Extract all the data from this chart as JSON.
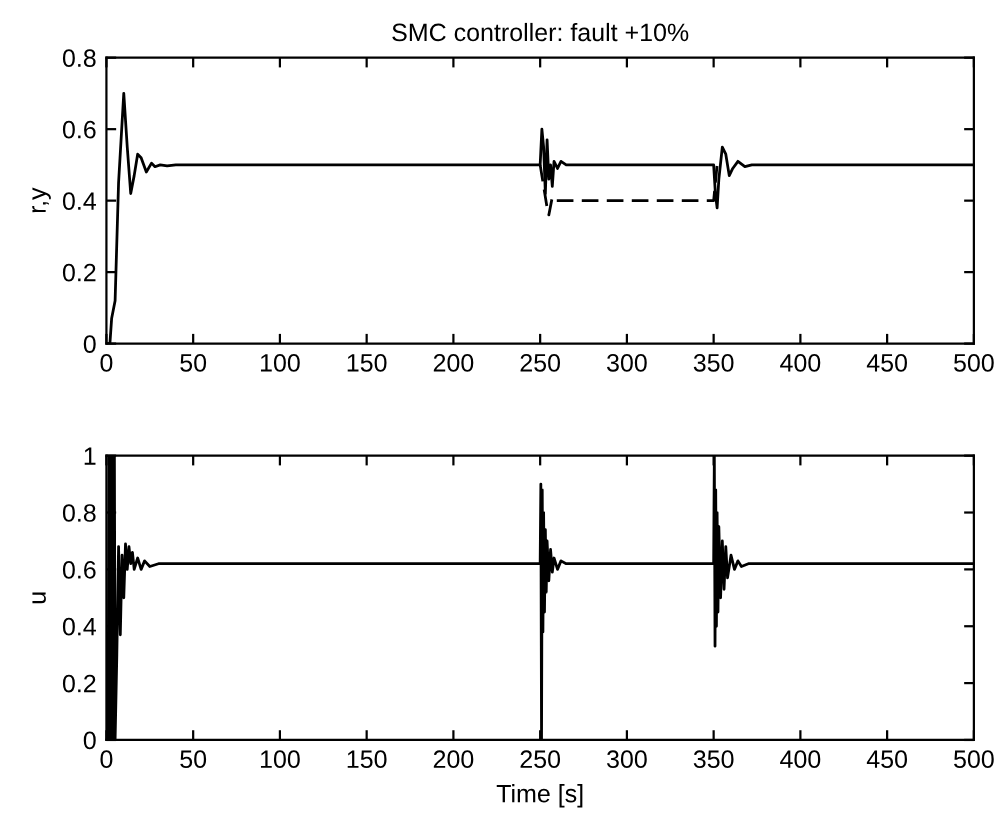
{
  "chart_data": [
    {
      "type": "line",
      "title": "SMC controller: fault +10%",
      "ylabel": "r,y",
      "xlim": [
        0,
        500
      ],
      "xticks": [
        0,
        50,
        100,
        150,
        200,
        250,
        300,
        350,
        400,
        450,
        500
      ],
      "ylim": [
        0,
        0.8
      ],
      "yticks": [
        0,
        0.2,
        0.4,
        0.6,
        0.8
      ],
      "grid": false,
      "legend": false,
      "series": [
        {
          "color": "#000000",
          "line_style": "solid",
          "x": [
            0,
            2,
            3,
            5,
            7,
            10,
            12,
            14,
            16,
            18,
            20,
            23,
            26,
            28,
            31,
            35,
            40,
            250,
            251,
            252,
            253,
            254,
            255,
            256,
            257,
            258,
            260,
            262,
            265,
            270,
            350,
            351,
            352,
            353,
            355,
            357,
            359,
            361,
            364,
            368,
            372,
            500
          ],
          "values": [
            0,
            0,
            0.07,
            0.12,
            0.45,
            0.7,
            0.55,
            0.42,
            0.47,
            0.53,
            0.52,
            0.48,
            0.505,
            0.495,
            0.5,
            0.497,
            0.5,
            0.5,
            0.6,
            0.55,
            0.42,
            0.57,
            0.46,
            0.5,
            0.44,
            0.51,
            0.49,
            0.51,
            0.5,
            0.5,
            0.5,
            0.42,
            0.38,
            0.46,
            0.55,
            0.53,
            0.47,
            0.49,
            0.51,
            0.495,
            0.5,
            0.5
          ]
        },
        {
          "color": "#000000",
          "line_style": "dashed",
          "x": [
            250,
            252,
            254,
            255,
            257,
            259,
            262,
            350,
            351,
            352
          ],
          "values": [
            0.5,
            0.44,
            0.38,
            0.36,
            0.41,
            0.4,
            0.4,
            0.4,
            0.45,
            0.5
          ]
        }
      ]
    },
    {
      "type": "line",
      "xlabel": "Time [s]",
      "ylabel": "u",
      "xlim": [
        0,
        500
      ],
      "xticks": [
        0,
        50,
        100,
        150,
        200,
        250,
        300,
        350,
        400,
        450,
        500
      ],
      "ylim": [
        0,
        1
      ],
      "yticks": [
        0,
        0.2,
        0.4,
        0.6,
        0.8,
        1
      ],
      "grid": false,
      "legend": false,
      "series": [
        {
          "color": "#000000",
          "line_style": "solid",
          "x": [
            1,
            1.4,
            1.8,
            2.2,
            2.6,
            3,
            3.4,
            3.8,
            4.2,
            4.6,
            5,
            6,
            7,
            8,
            9,
            10,
            11,
            12,
            13,
            14,
            15,
            16,
            18,
            20,
            22,
            25,
            30,
            250,
            250.4,
            250.8,
            251.2,
            251.6,
            252,
            252.5,
            253,
            253.5,
            254,
            255,
            256,
            257,
            258,
            260,
            262,
            265,
            350,
            350.4,
            350.8,
            351.2,
            351.6,
            352,
            352.5,
            353,
            354,
            355,
            356,
            357,
            358,
            360,
            362,
            364,
            366,
            370,
            500
          ],
          "values": [
            0,
            1,
            0,
            1,
            0,
            1,
            0,
            1,
            0,
            1,
            0,
            0.3,
            0.68,
            0.37,
            0.65,
            0.5,
            0.69,
            0.6,
            0.68,
            0.62,
            0.66,
            0.6,
            0.64,
            0.6,
            0.63,
            0.61,
            0.62,
            0.62,
            0.9,
            0,
            0.88,
            0.38,
            0.8,
            0.45,
            0.74,
            0.52,
            0.7,
            0.56,
            0.67,
            0.59,
            0.64,
            0.6,
            0.63,
            0.62,
            0.62,
            1,
            0.33,
            0.88,
            0.4,
            0.8,
            0.45,
            0.75,
            0.5,
            0.7,
            0.53,
            0.68,
            0.57,
            0.65,
            0.6,
            0.63,
            0.61,
            0.62,
            0.62
          ]
        }
      ]
    }
  ]
}
